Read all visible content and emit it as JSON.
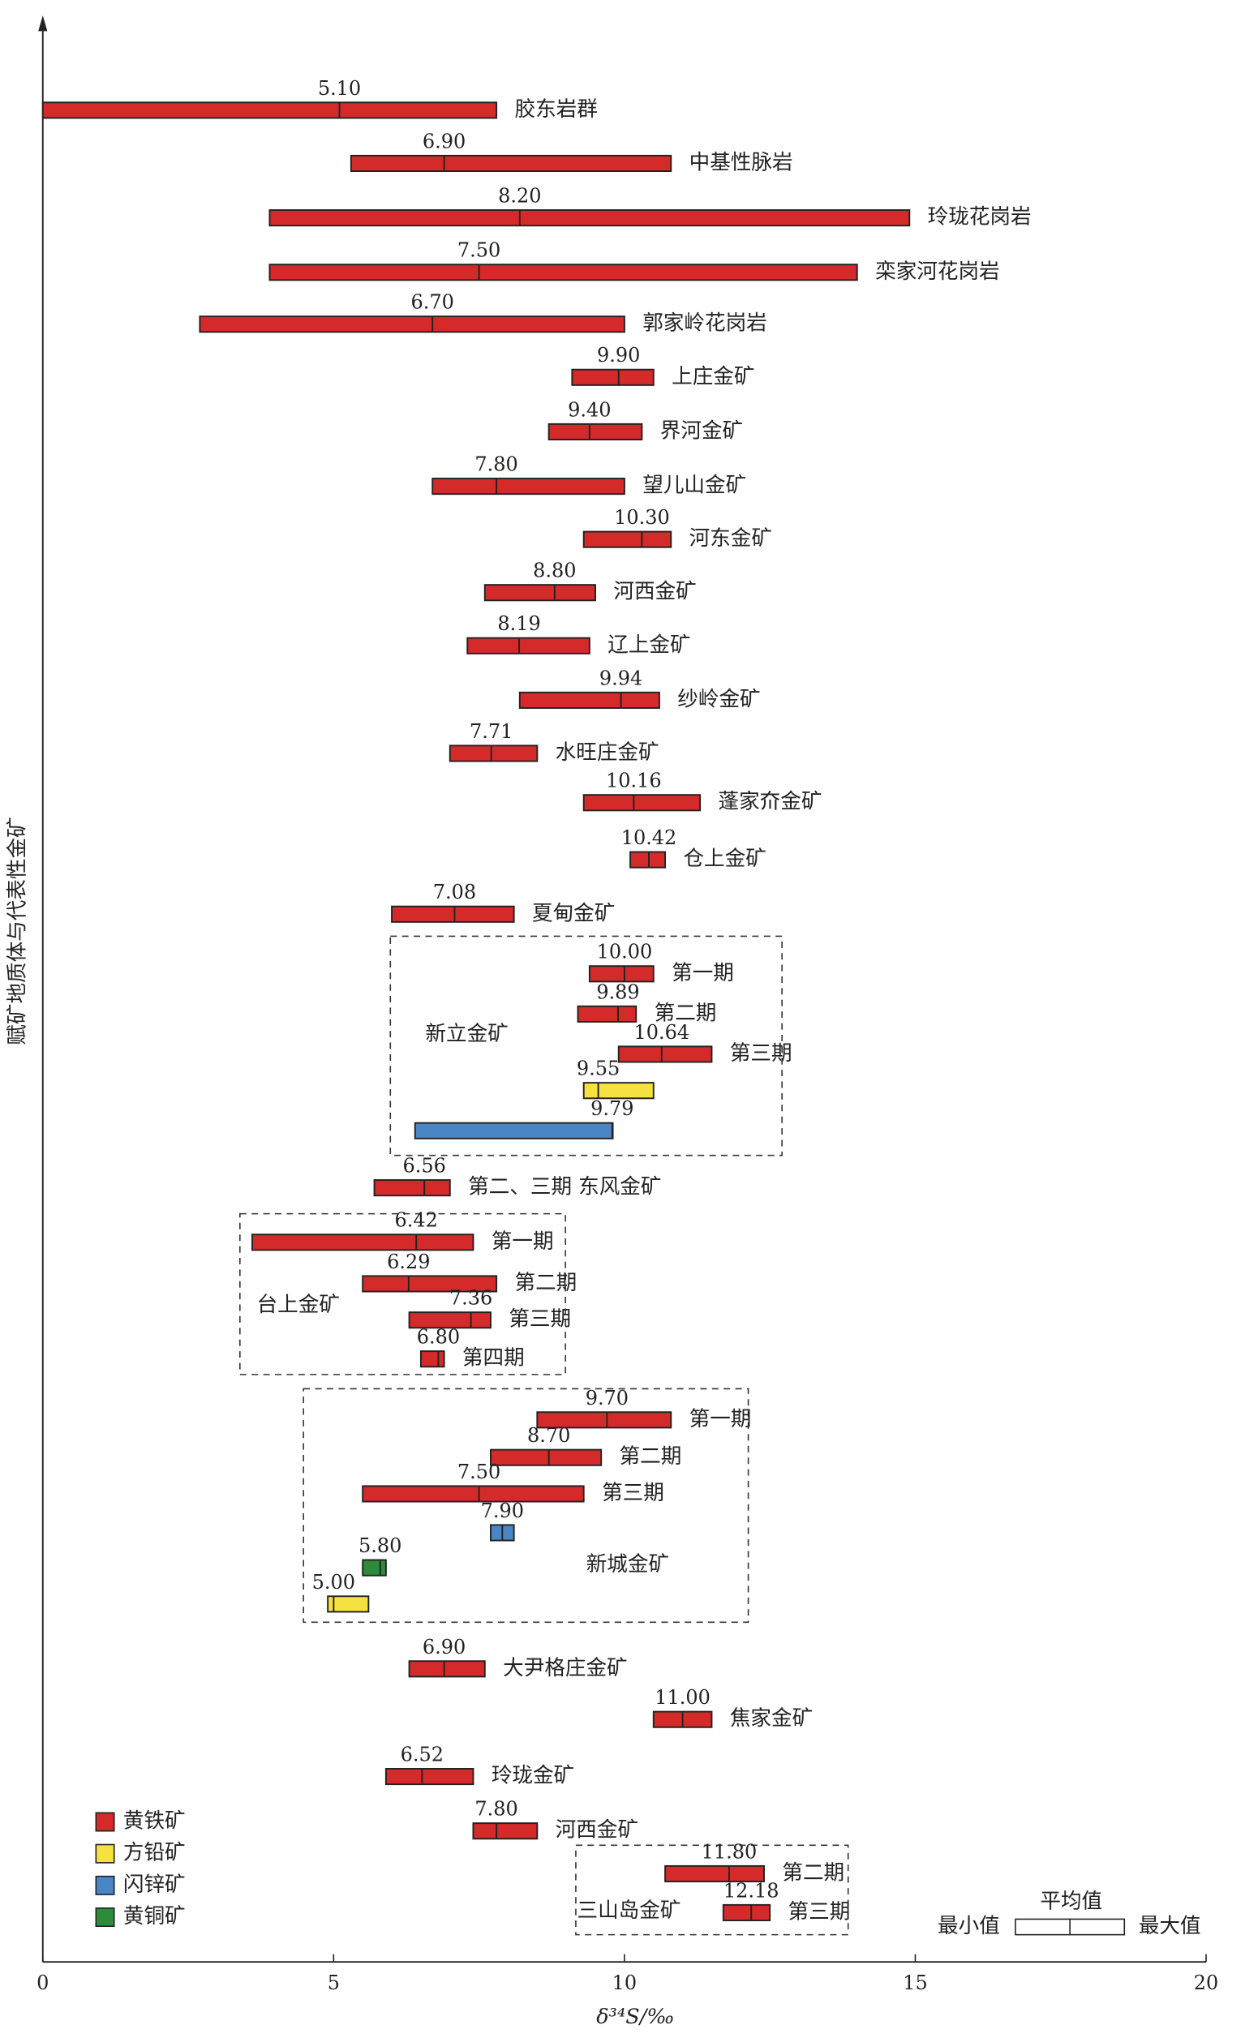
{
  "chart_data": {
    "type": "range",
    "x_label": "δ³⁴S/‰",
    "y_label": "赋矿地质体与代表性金矿",
    "xlim": [
      0,
      20
    ],
    "xticks": [
      0,
      5,
      10,
      15,
      20
    ],
    "minerals": [
      {
        "name": "黄铁矿",
        "color": "#d42a2a"
      },
      {
        "name": "方铅矿",
        "color": "#f5e240"
      },
      {
        "name": "闪锌矿",
        "color": "#4a86c5"
      },
      {
        "name": "黄铜矿",
        "color": "#2e8b3a"
      }
    ],
    "key": {
      "mean": "平均值",
      "min": "最小值",
      "max": "最大值"
    },
    "groups": [
      {
        "label": "新立金矿"
      },
      {
        "label": "台上金矿"
      },
      {
        "label": "新城金矿"
      },
      {
        "label": "三山岛金矿"
      }
    ],
    "items": [
      {
        "label": "胶东岩群",
        "min": 0,
        "max": 7.8,
        "mean": 5.1,
        "mean_label": "5.10",
        "color": "#d42a2a"
      },
      {
        "label": "中基性脉岩",
        "min": 5.3,
        "max": 10.8,
        "mean": 6.9,
        "mean_label": "6.90",
        "color": "#d42a2a"
      },
      {
        "label": "玲珑花岗岩",
        "min": 3.9,
        "max": 14.9,
        "mean": 8.2,
        "mean_label": "8.20",
        "color": "#d42a2a"
      },
      {
        "label": "栾家河花岗岩",
        "min": 3.9,
        "max": 14.0,
        "mean": 7.5,
        "mean_label": "7.50",
        "color": "#d42a2a"
      },
      {
        "label": "郭家岭花岗岩",
        "min": 2.7,
        "max": 10.0,
        "mean": 6.7,
        "mean_label": "6.70",
        "color": "#d42a2a"
      },
      {
        "label": "上庄金矿",
        "min": 9.1,
        "max": 10.5,
        "mean": 9.9,
        "mean_label": "9.90",
        "color": "#d42a2a"
      },
      {
        "label": "界河金矿",
        "min": 8.7,
        "max": 10.3,
        "mean": 9.4,
        "mean_label": "9.40",
        "color": "#d42a2a"
      },
      {
        "label": "望儿山金矿",
        "min": 6.7,
        "max": 10.0,
        "mean": 7.8,
        "mean_label": "7.80",
        "color": "#d42a2a"
      },
      {
        "label": "河东金矿",
        "min": 9.3,
        "max": 10.8,
        "mean": 10.3,
        "mean_label": "10.30",
        "color": "#d42a2a"
      },
      {
        "label": "河西金矿",
        "min": 7.6,
        "max": 9.5,
        "mean": 8.8,
        "mean_label": "8.80",
        "color": "#d42a2a"
      },
      {
        "label": "辽上金矿",
        "min": 7.3,
        "max": 9.4,
        "mean": 8.19,
        "color": "#d42a2a"
      },
      {
        "label": "纱岭金矿",
        "min": 8.2,
        "max": 10.6,
        "mean": 9.94,
        "color": "#d42a2a"
      },
      {
        "label": "水旺庄金矿",
        "min": 7.0,
        "max": 8.5,
        "mean": 7.71,
        "color": "#d42a2a"
      },
      {
        "label": "蓬家夼金矿",
        "min": 9.3,
        "max": 11.3,
        "mean": 10.16,
        "color": "#d42a2a"
      },
      {
        "label": "仓上金矿",
        "min": 10.1,
        "max": 10.7,
        "mean": 10.42,
        "color": "#d42a2a"
      },
      {
        "label": "夏甸金矿",
        "min": 6.0,
        "max": 8.1,
        "mean": 7.08,
        "color": "#d42a2a"
      },
      {
        "label": "第一期",
        "min": 9.4,
        "max": 10.5,
        "mean": 10.0,
        "mean_label": "10.00",
        "color": "#d42a2a"
      },
      {
        "label": "第二期",
        "min": 9.2,
        "max": 10.2,
        "mean": 9.89,
        "color": "#d42a2a"
      },
      {
        "label": "第三期",
        "min": 9.9,
        "max": 11.5,
        "mean": 10.64,
        "color": "#d42a2a"
      },
      {
        "min": 9.3,
        "max": 10.5,
        "mean": 9.55,
        "color": "#f5e240"
      },
      {
        "min": 6.4,
        "max": 9.8,
        "mean": 9.79,
        "color": "#4a86c5"
      },
      {
        "label": "第二、三期 东风金矿",
        "min": 5.7,
        "max": 7.0,
        "mean": 6.56,
        "color": "#d42a2a"
      },
      {
        "label": "第一期",
        "min": 3.6,
        "max": 7.4,
        "mean": 6.42,
        "color": "#d42a2a"
      },
      {
        "label": "第二期",
        "min": 5.5,
        "max": 7.8,
        "mean": 6.29,
        "color": "#d42a2a"
      },
      {
        "label": "第三期",
        "min": 6.3,
        "max": 7.7,
        "mean": 7.36,
        "color": "#d42a2a"
      },
      {
        "label": "第四期",
        "min": 6.5,
        "max": 6.9,
        "mean": 6.8,
        "mean_label": "6.80",
        "color": "#d42a2a"
      },
      {
        "label": "第一期",
        "min": 8.5,
        "max": 10.8,
        "mean": 9.7,
        "mean_label": "9.70",
        "color": "#d42a2a"
      },
      {
        "label": "第二期",
        "min": 7.7,
        "max": 9.6,
        "mean": 8.7,
        "mean_label": "8.70",
        "color": "#d42a2a"
      },
      {
        "label": "第三期",
        "min": 5.5,
        "max": 9.3,
        "mean": 7.5,
        "mean_label": "7.50",
        "color": "#d42a2a"
      },
      {
        "min": 7.7,
        "max": 8.1,
        "mean": 7.9,
        "mean_label": "7.90",
        "color": "#4a86c5"
      },
      {
        "min": 5.5,
        "max": 5.9,
        "mean": 5.8,
        "mean_label": "5.80",
        "color": "#2e8b3a"
      },
      {
        "min": 4.9,
        "max": 5.6,
        "mean": 5.0,
        "mean_label": "5.00",
        "color": "#f5e240"
      },
      {
        "label": "大尹格庄金矿",
        "min": 6.3,
        "max": 7.6,
        "mean": 6.9,
        "mean_label": "6.90",
        "color": "#d42a2a"
      },
      {
        "label": "焦家金矿",
        "min": 10.5,
        "max": 11.5,
        "mean": 11.0,
        "mean_label": "11.00",
        "color": "#d42a2a"
      },
      {
        "label": "玲珑金矿",
        "min": 5.9,
        "max": 7.4,
        "mean": 6.52,
        "color": "#d42a2a"
      },
      {
        "label": "河西金矿",
        "min": 7.4,
        "max": 8.5,
        "mean": 7.8,
        "mean_label": "7.80",
        "color": "#d42a2a"
      },
      {
        "label": "第二期",
        "min": 10.7,
        "max": 12.4,
        "mean": 11.8,
        "mean_label": "11.80",
        "color": "#d42a2a"
      },
      {
        "label": "第三期",
        "min": 11.7,
        "max": 12.5,
        "mean": 12.18,
        "color": "#d42a2a"
      }
    ]
  }
}
